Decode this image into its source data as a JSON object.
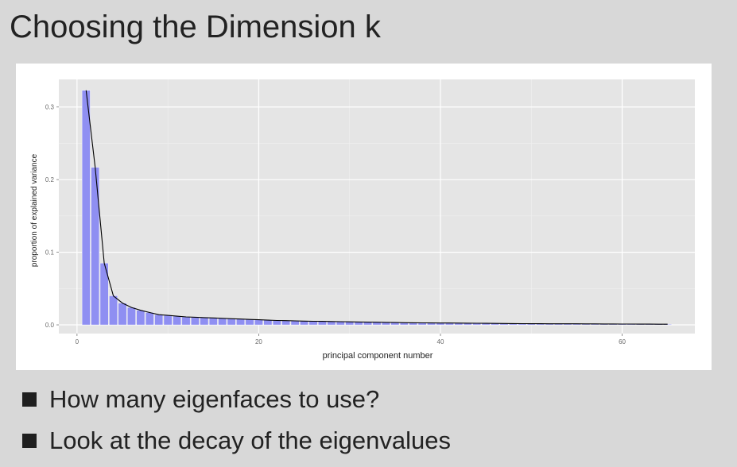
{
  "slide": {
    "title": "Choosing the Dimension k",
    "bullets": [
      "How many eigenfaces to use?",
      "Look at the decay of the eigenvalues"
    ]
  },
  "chart_data": {
    "type": "bar",
    "xlabel": "principal component number",
    "ylabel": "proportion of explained variance",
    "xlim": [
      -2,
      68
    ],
    "ylim": [
      -0.012,
      0.338
    ],
    "x_ticks": [
      0,
      20,
      40,
      60
    ],
    "y_ticks": [
      0.0,
      0.1,
      0.2,
      0.3
    ],
    "y_tick_labels": [
      "0.0",
      "0.1",
      "0.2",
      "0.3"
    ],
    "x_tick_labels": [
      "0",
      "20",
      "40",
      "60"
    ],
    "grid": true,
    "background": "#e5e5e5",
    "bar_color": "#8f8ff2",
    "line_color": "#000000",
    "x": [
      1,
      2,
      3,
      4,
      5,
      6,
      7,
      8,
      9,
      10,
      11,
      12,
      13,
      14,
      15,
      16,
      17,
      18,
      19,
      20,
      21,
      22,
      23,
      24,
      25,
      26,
      27,
      28,
      29,
      30,
      31,
      32,
      33,
      34,
      35,
      36,
      37,
      38,
      39,
      40,
      41,
      42,
      43,
      44,
      45,
      46,
      47,
      48,
      49,
      50,
      51,
      52,
      53,
      54,
      55,
      56,
      57,
      58,
      59,
      60,
      61,
      62,
      63,
      64,
      65
    ],
    "values": [
      0.323,
      0.217,
      0.085,
      0.04,
      0.03,
      0.024,
      0.02,
      0.017,
      0.014,
      0.013,
      0.012,
      0.011,
      0.0105,
      0.01,
      0.0095,
      0.009,
      0.0085,
      0.008,
      0.0075,
      0.007,
      0.0065,
      0.006,
      0.0058,
      0.0055,
      0.0052,
      0.005,
      0.0048,
      0.0046,
      0.0044,
      0.0042,
      0.004,
      0.0038,
      0.0036,
      0.0034,
      0.0032,
      0.003,
      0.0029,
      0.0028,
      0.0027,
      0.0026,
      0.0025,
      0.0024,
      0.0023,
      0.0022,
      0.0021,
      0.002,
      0.0019,
      0.0018,
      0.0017,
      0.0016,
      0.0016,
      0.0015,
      0.0015,
      0.0014,
      0.0014,
      0.0013,
      0.0013,
      0.0012,
      0.0012,
      0.0011,
      0.0011,
      0.001,
      0.001,
      0.0009,
      0.0009
    ]
  }
}
